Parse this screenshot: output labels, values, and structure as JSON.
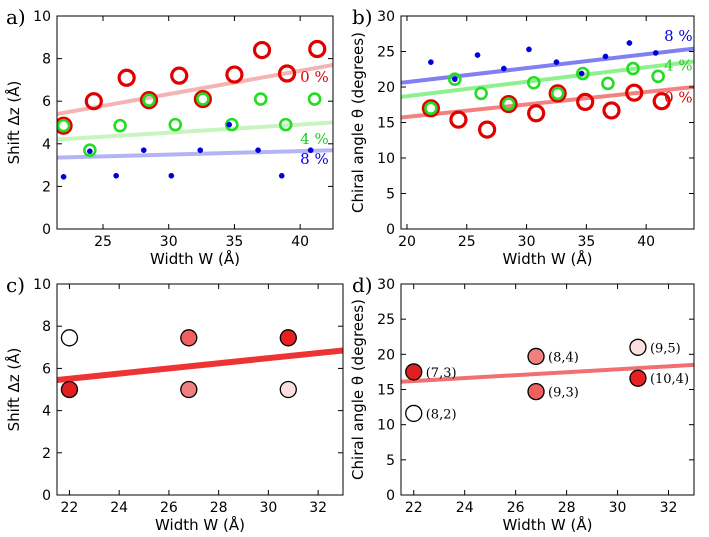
{
  "chart_data": [
    {
      "panel_label": "a)",
      "type": "scatter",
      "xlabel": "Width W (Å)",
      "ylabel": "Shift Δz (Å)",
      "xlim": [
        21.5,
        42.5
      ],
      "ylim": [
        0,
        10
      ],
      "xticks": [
        25,
        30,
        35,
        40
      ],
      "yticks": [
        0,
        2,
        4,
        6,
        8,
        10
      ],
      "series": [
        {
          "name": "0 %",
          "color": "#e00000",
          "style": "ring",
          "size": "large",
          "x": [
            22.0,
            24.3,
            26.8,
            28.5,
            30.8,
            32.6,
            35.0,
            37.1,
            39.0,
            41.3
          ],
          "y": [
            4.85,
            6.0,
            7.1,
            6.05,
            7.2,
            6.1,
            7.25,
            8.4,
            7.3,
            8.45
          ]
        },
        {
          "name": "4 %",
          "color": "#22dd22",
          "style": "ring",
          "size": "medium",
          "x": [
            22.0,
            24.0,
            26.3,
            28.5,
            30.5,
            32.6,
            34.8,
            37.0,
            38.9,
            41.1
          ],
          "y": [
            4.85,
            3.7,
            4.85,
            6.05,
            4.9,
            6.1,
            4.9,
            6.1,
            4.9,
            6.1
          ]
        },
        {
          "name": "8 %",
          "color": "#0000dd",
          "style": "dot",
          "size": "small",
          "x": [
            22.0,
            24.0,
            26.0,
            28.1,
            30.2,
            32.4,
            34.6,
            36.8,
            38.6,
            40.8
          ],
          "y": [
            2.45,
            3.65,
            2.5,
            3.7,
            2.5,
            3.7,
            4.9,
            3.7,
            2.5,
            3.7
          ]
        }
      ],
      "fits": [
        {
          "name": "0 % fit",
          "color": "#f4b4b4",
          "x": [
            21.5,
            42.5
          ],
          "y": [
            5.4,
            7.7
          ]
        },
        {
          "name": "4 % fit",
          "color": "#c8f4c0",
          "x": [
            21.5,
            42.5
          ],
          "y": [
            4.2,
            5.0
          ]
        },
        {
          "name": "8 % fit",
          "color": "#b4b4f4",
          "x": [
            21.5,
            42.5
          ],
          "y": [
            3.35,
            3.7
          ]
        }
      ],
      "annotations": [
        {
          "text": "0 %",
          "x": 40.0,
          "y": 6.9,
          "color": "#e00000"
        },
        {
          "text": "4 %",
          "x": 40.0,
          "y": 4.0,
          "color": "#22cc22"
        },
        {
          "text": "8 %",
          "x": 40.0,
          "y": 3.05,
          "color": "#0000dd"
        }
      ]
    },
    {
      "panel_label": "b)",
      "type": "scatter",
      "xlabel": "Width W (Å)",
      "ylabel": "Chiral angle θ (degrees)",
      "xlim": [
        19.5,
        44
      ],
      "ylim": [
        0,
        30
      ],
      "xticks": [
        20,
        25,
        30,
        35,
        40
      ],
      "yticks": [
        0,
        5,
        10,
        15,
        20,
        25,
        30
      ],
      "series": [
        {
          "name": "0 %",
          "color": "#e00000",
          "style": "ring",
          "size": "large",
          "x": [
            22.0,
            24.3,
            26.7,
            28.5,
            30.8,
            32.6,
            34.9,
            37.1,
            39.0,
            41.3
          ],
          "y": [
            17.0,
            15.4,
            14.0,
            17.6,
            16.3,
            19.1,
            17.9,
            16.7,
            19.2,
            18.0
          ]
        },
        {
          "name": "4 %",
          "color": "#22dd22",
          "style": "ring",
          "size": "medium",
          "x": [
            22.0,
            24.0,
            26.2,
            28.5,
            30.6,
            32.6,
            34.7,
            36.8,
            38.9,
            41.0
          ],
          "y": [
            17.0,
            21.1,
            19.1,
            17.6,
            20.6,
            19.1,
            21.9,
            20.5,
            22.6,
            21.5
          ]
        },
        {
          "name": "8 %",
          "color": "#0000dd",
          "style": "dot",
          "size": "small",
          "x": [
            22.0,
            24.0,
            25.9,
            28.1,
            30.2,
            32.5,
            34.6,
            36.6,
            38.6,
            40.8
          ],
          "y": [
            23.5,
            21.1,
            24.5,
            22.6,
            25.3,
            23.5,
            21.9,
            24.3,
            26.2,
            24.8
          ]
        }
      ],
      "fits": [
        {
          "name": "0 % fit",
          "color": "#f48080",
          "x": [
            19.5,
            44
          ],
          "y": [
            15.7,
            20.0
          ]
        },
        {
          "name": "4 % fit",
          "color": "#8ef08e",
          "x": [
            19.5,
            44
          ],
          "y": [
            18.6,
            23.6
          ]
        },
        {
          "name": "8 % fit",
          "color": "#8080f0",
          "x": [
            19.5,
            44
          ],
          "y": [
            20.6,
            25.4
          ]
        }
      ],
      "annotations": [
        {
          "text": "8 %",
          "x": 41.5,
          "y": 26.5,
          "color": "#0000dd"
        },
        {
          "text": "4 %",
          "x": 41.5,
          "y": 22.3,
          "color": "#22cc22"
        },
        {
          "text": "0 %",
          "x": 41.5,
          "y": 17.8,
          "color": "#e00000"
        }
      ]
    },
    {
      "panel_label": "c)",
      "type": "scatter",
      "xlabel": "Width W (Å)",
      "ylabel": "Shift Δz (Å)",
      "xlim": [
        21.5,
        33
      ],
      "ylim": [
        0,
        10
      ],
      "xticks": [
        22,
        24,
        26,
        28,
        30,
        32
      ],
      "yticks": [
        0,
        2,
        4,
        6,
        8,
        10
      ],
      "points": [
        {
          "x": 22.0,
          "y": 7.45,
          "fill": "#ffffff"
        },
        {
          "x": 22.0,
          "y": 5.0,
          "fill": "#e02020"
        },
        {
          "x": 26.8,
          "y": 7.45,
          "fill": "#f06060"
        },
        {
          "x": 26.8,
          "y": 5.0,
          "fill": "#f08080"
        },
        {
          "x": 30.8,
          "y": 7.45,
          "fill": "#e82020"
        },
        {
          "x": 30.8,
          "y": 5.0,
          "fill": "#fce0e0"
        }
      ],
      "fits": [
        {
          "name": "fit",
          "color": "#ee3333",
          "x": [
            21.5,
            33
          ],
          "y": [
            5.45,
            6.85
          ]
        }
      ]
    },
    {
      "panel_label": "d)",
      "type": "scatter",
      "xlabel": "Width W (Å)",
      "ylabel": "Chiral angle θ (degrees)",
      "xlim": [
        21.5,
        33
      ],
      "ylim": [
        0,
        30
      ],
      "xticks": [
        22,
        24,
        26,
        28,
        30,
        32
      ],
      "yticks": [
        0,
        5,
        10,
        15,
        20,
        25,
        30
      ],
      "points": [
        {
          "x": 22.0,
          "y": 17.5,
          "fill": "#e02020",
          "label": "(7,3)"
        },
        {
          "x": 22.0,
          "y": 11.6,
          "fill": "#ffffff",
          "label": "(8,2)"
        },
        {
          "x": 26.8,
          "y": 19.7,
          "fill": "#f08080",
          "label": "(8,4)"
        },
        {
          "x": 26.8,
          "y": 14.7,
          "fill": "#f06060",
          "label": "(9,3)"
        },
        {
          "x": 30.8,
          "y": 21.0,
          "fill": "#fce0e0",
          "label": "(9,5)"
        },
        {
          "x": 30.8,
          "y": 16.6,
          "fill": "#e82020",
          "label": "(10,4)"
        }
      ],
      "fits": [
        {
          "name": "fit",
          "color": "#f07070",
          "x": [
            21.5,
            33
          ],
          "y": [
            16.1,
            18.5
          ]
        }
      ]
    }
  ]
}
